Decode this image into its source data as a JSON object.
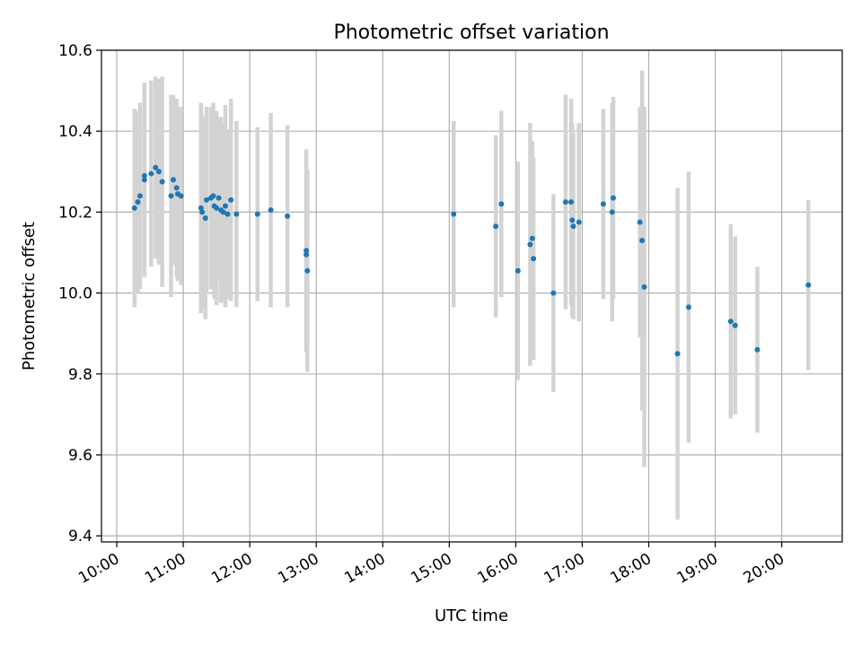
{
  "chart_data": {
    "type": "scatter",
    "title": "Photometric offset variation",
    "xlabel": "UTC time",
    "ylabel": "Photometric offset",
    "x_range_hours": [
      9.77,
      20.91
    ],
    "ylim": [
      9.385,
      10.6
    ],
    "x_ticks": [
      "10:00",
      "11:00",
      "12:00",
      "13:00",
      "14:00",
      "15:00",
      "16:00",
      "17:00",
      "18:00",
      "19:00",
      "20:00"
    ],
    "y_ticks": [
      "9.4",
      "9.6",
      "9.8",
      "10.0",
      "10.2",
      "10.4",
      "10.6"
    ],
    "grid": true,
    "colors": {
      "point": "#1f77b4",
      "errorbar": "#d3d3d3",
      "grid": "#b0b0b0"
    },
    "points": [
      [
        "10:16",
        10.21,
        0.245
      ],
      [
        "10:19",
        10.225,
        0.225
      ],
      [
        "10:21",
        10.24,
        0.23
      ],
      [
        "10:25",
        10.29,
        0.23
      ],
      [
        "10:25",
        10.28,
        0.24
      ],
      [
        "10:31",
        10.295,
        0.23
      ],
      [
        "10:35",
        10.31,
        0.225
      ],
      [
        "10:38",
        10.3,
        0.23
      ],
      [
        "10:41",
        10.275,
        0.26
      ],
      [
        "10:49",
        10.24,
        0.25
      ],
      [
        "10:51",
        10.28,
        0.21
      ],
      [
        "10:54",
        10.26,
        0.22
      ],
      [
        "10:55",
        10.245,
        0.215
      ],
      [
        "10:58",
        10.24,
        0.22
      ],
      [
        "11:16",
        10.21,
        0.26
      ],
      [
        "11:17",
        10.2,
        0.24
      ],
      [
        "11:20",
        10.185,
        0.25
      ],
      [
        "11:21",
        10.23,
        0.23
      ],
      [
        "11:25",
        10.235,
        0.225
      ],
      [
        "11:27",
        10.24,
        0.23
      ],
      [
        "11:28",
        10.215,
        0.23
      ],
      [
        "11:30",
        10.21,
        0.24
      ],
      [
        "11:32",
        10.235,
        0.2
      ],
      [
        "11:34",
        10.205,
        0.23
      ],
      [
        "11:36",
        10.2,
        0.22
      ],
      [
        "11:38",
        10.215,
        0.25
      ],
      [
        "11:40",
        10.195,
        0.21
      ],
      [
        "11:43",
        10.23,
        0.25
      ],
      [
        "11:48",
        10.195,
        0.23
      ],
      [
        "12:07",
        10.195,
        0.215
      ],
      [
        "12:19",
        10.205,
        0.24
      ],
      [
        "12:34",
        10.19,
        0.225
      ],
      [
        "12:51",
        10.105,
        0.25
      ],
      [
        "12:51",
        10.095,
        0.24
      ],
      [
        "12:52",
        10.055,
        0.25
      ],
      [
        "15:04",
        10.195,
        0.23
      ],
      [
        "15:42",
        10.165,
        0.225
      ],
      [
        "15:47",
        10.22,
        0.23
      ],
      [
        "16:02",
        10.055,
        0.27
      ],
      [
        "16:13",
        10.12,
        0.3
      ],
      [
        "16:15",
        10.135,
        0.24
      ],
      [
        "16:16",
        10.085,
        0.25
      ],
      [
        "16:34",
        10.0,
        0.245
      ],
      [
        "16:45",
        10.225,
        0.265
      ],
      [
        "16:50",
        10.225,
        0.255
      ],
      [
        "16:51",
        10.18,
        0.24
      ],
      [
        "16:52",
        10.165,
        0.23
      ],
      [
        "16:57",
        10.175,
        0.245
      ],
      [
        "17:19",
        10.22,
        0.235
      ],
      [
        "17:27",
        10.2,
        0.27
      ],
      [
        "17:28",
        10.235,
        0.25
      ],
      [
        "17:52",
        10.175,
        0.285
      ],
      [
        "17:54",
        10.13,
        0.42
      ],
      [
        "17:56",
        10.015,
        0.445
      ],
      [
        "18:26",
        9.85,
        0.41
      ],
      [
        "18:36",
        9.965,
        0.335
      ],
      [
        "19:14",
        9.93,
        0.24
      ],
      [
        "19:18",
        9.92,
        0.22
      ],
      [
        "19:38",
        9.86,
        0.205
      ],
      [
        "20:24",
        10.02,
        0.21
      ]
    ]
  }
}
